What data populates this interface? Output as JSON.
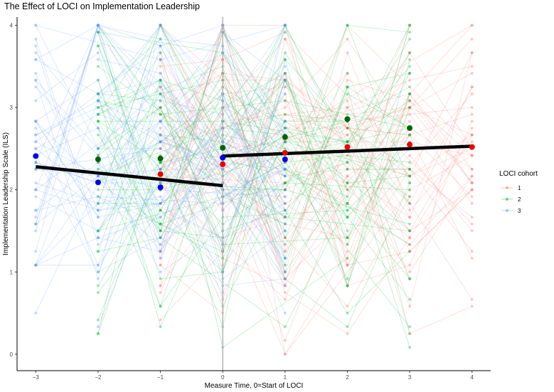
{
  "chart_data": {
    "type": "scatter",
    "title": "The Effect of LOCI on Implementation Leadership",
    "xlabel": "Measure Time, 0=Start of LOCI",
    "ylabel": "Implementation Leadership Scale (ILS)",
    "xlim": [
      -3.3,
      4.3
    ],
    "ylim": [
      -0.2,
      4.1
    ],
    "x_ticks": [
      -3,
      -2,
      -1,
      0,
      1,
      2,
      3,
      4
    ],
    "y_ticks": [
      0,
      1,
      2,
      3,
      4
    ],
    "grid": false,
    "vertical_reference_line": 0,
    "legend": {
      "title": "LOCI cohort",
      "position": "right",
      "entries": [
        "1",
        "2",
        "3"
      ]
    },
    "colors": {
      "cohort_1": "#F8766D",
      "cohort_2": "#00BA38",
      "cohort_3": "#619CFF",
      "mean_1": "#EE0000",
      "mean_2": "#006400",
      "mean_3": "#0000EE",
      "trend": "#000000",
      "refline": "#b3b3b3"
    },
    "cohort_time_ranges": {
      "1": [
        -1,
        4
      ],
      "2": [
        -2,
        3
      ],
      "3": [
        -3,
        1
      ]
    },
    "series": [
      {
        "name": "1",
        "role": "cohort mean",
        "x": [
          -1,
          0,
          1,
          2,
          3,
          4
        ],
        "y": [
          2.19,
          2.31,
          2.45,
          2.52,
          2.55,
          2.52
        ]
      },
      {
        "name": "2",
        "role": "cohort mean",
        "x": [
          -2,
          -1,
          0,
          1,
          2,
          3
        ],
        "y": [
          2.37,
          2.38,
          2.51,
          2.64,
          2.86,
          2.75
        ]
      },
      {
        "name": "3",
        "role": "cohort mean",
        "x": [
          -3,
          -2,
          -1,
          0,
          1
        ],
        "y": [
          2.41,
          2.09,
          2.03,
          2.39,
          2.37
        ]
      }
    ],
    "trend_lines": [
      {
        "segment": "pre",
        "x": [
          -3,
          0
        ],
        "y": [
          2.28,
          2.05
        ]
      },
      {
        "segment": "post",
        "x": [
          0,
          4
        ],
        "y": [
          2.41,
          2.53
        ]
      }
    ]
  }
}
